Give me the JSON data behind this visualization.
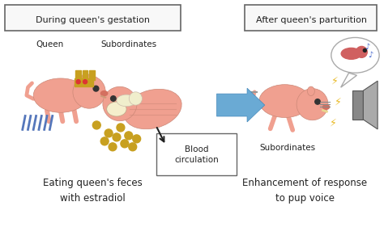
{
  "background_color": "#ffffff",
  "title_left": "During queen's gestation",
  "title_right": "After queen's parturition",
  "label_queen": "Queen",
  "label_subordinates_left": "Subordinates",
  "label_blood": "Blood\ncirculation",
  "label_subordinates_right": "Subordinates",
  "caption_left": "Eating queen's feces\nwith estradiol",
  "caption_right": "Enhancement of response\nto pup voice",
  "box_edge": "#666666",
  "arrow_color": "#6aaad4",
  "text_color": "#222222",
  "pink_body": "#f0a090",
  "pink_head": "#f0a090",
  "cream_color": "#f5eecc",
  "gold_color": "#c8a020",
  "feces_color": "#c8a020",
  "blue_line": "#5577bb",
  "gray_line": "#888888",
  "yellow_bolt": "#e8b820",
  "blue_bolt": "#4477cc",
  "speech_pink": "#d06060",
  "speaker_gray": "#888888"
}
